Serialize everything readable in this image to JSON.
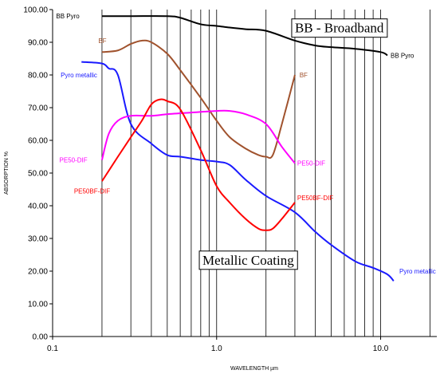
{
  "chart_data": {
    "type": "line",
    "xlabel": "WAVELENGTH µm",
    "ylabel": "ABSORPTION %",
    "x_scale": "log",
    "xlim": [
      0.1,
      22
    ],
    "ylim": [
      0,
      100
    ],
    "x_ticks": [
      {
        "value": 0.1,
        "label": "0.1"
      },
      {
        "value": 1,
        "label": "1.0"
      },
      {
        "value": 10,
        "label": "10.0"
      }
    ],
    "y_ticks": [
      {
        "value": 0,
        "label": "0.00"
      },
      {
        "value": 10,
        "label": "10.00"
      },
      {
        "value": 20,
        "label": "20.00"
      },
      {
        "value": 30,
        "label": "30.00"
      },
      {
        "value": 40,
        "label": "40.00"
      },
      {
        "value": 50,
        "label": "50.00"
      },
      {
        "value": 60,
        "label": "60.00"
      },
      {
        "value": 70,
        "label": "70.00"
      },
      {
        "value": 80,
        "label": "80.00"
      },
      {
        "value": 90,
        "label": "90.00"
      },
      {
        "value": 100,
        "label": "100.00"
      }
    ],
    "grid": {
      "vertical": true,
      "horizontal": false
    },
    "series": [
      {
        "name": "BB Pyro",
        "color": "#000000",
        "points": [
          [
            0.2,
            98
          ],
          [
            0.3,
            98
          ],
          [
            0.5,
            98
          ],
          [
            0.6,
            97.5
          ],
          [
            0.8,
            95.5
          ],
          [
            1.0,
            95
          ],
          [
            1.2,
            94.5
          ],
          [
            1.5,
            94
          ],
          [
            2.0,
            93.5
          ],
          [
            3.0,
            90.5
          ],
          [
            4.0,
            89
          ],
          [
            5.0,
            88.5
          ],
          [
            7.0,
            88
          ],
          [
            10.0,
            87
          ],
          [
            11.0,
            86
          ]
        ]
      },
      {
        "name": "BF",
        "color": "#a0522d",
        "points": [
          [
            0.2,
            87
          ],
          [
            0.25,
            87.5
          ],
          [
            0.3,
            89.5
          ],
          [
            0.35,
            90.5
          ],
          [
            0.4,
            90
          ],
          [
            0.5,
            86.5
          ],
          [
            0.6,
            81.5
          ],
          [
            0.8,
            73
          ],
          [
            1.0,
            66
          ],
          [
            1.2,
            61
          ],
          [
            1.5,
            57.5
          ],
          [
            1.8,
            55.5
          ],
          [
            2.0,
            55
          ],
          [
            2.2,
            55.5
          ],
          [
            2.5,
            65
          ],
          [
            3.0,
            80
          ]
        ]
      },
      {
        "name": "Pyro metallic",
        "color": "#1a1aff",
        "points": [
          [
            0.15,
            84
          ],
          [
            0.2,
            83.5
          ],
          [
            0.22,
            82
          ],
          [
            0.25,
            80
          ],
          [
            0.3,
            65
          ],
          [
            0.4,
            59
          ],
          [
            0.5,
            55.5
          ],
          [
            0.6,
            55
          ],
          [
            0.8,
            54
          ],
          [
            1.0,
            53.5
          ],
          [
            1.2,
            52.5
          ],
          [
            1.5,
            48
          ],
          [
            2.0,
            43
          ],
          [
            3.0,
            38
          ],
          [
            4.0,
            32
          ],
          [
            5.0,
            28
          ],
          [
            7.0,
            23
          ],
          [
            9.0,
            21
          ],
          [
            11.0,
            19
          ],
          [
            12.0,
            17
          ]
        ]
      },
      {
        "name": "PE50-DIF",
        "color": "#ff00ff",
        "points": [
          [
            0.2,
            54
          ],
          [
            0.22,
            62
          ],
          [
            0.25,
            66
          ],
          [
            0.3,
            67.5
          ],
          [
            0.4,
            67.5
          ],
          [
            0.5,
            68
          ],
          [
            0.7,
            68.5
          ],
          [
            1.0,
            69
          ],
          [
            1.2,
            69
          ],
          [
            1.5,
            68
          ],
          [
            2.0,
            65
          ],
          [
            2.5,
            58
          ],
          [
            3.0,
            53
          ]
        ]
      },
      {
        "name": "PE50BF-DIF",
        "color": "#ff0000",
        "points": [
          [
            0.2,
            47.5
          ],
          [
            0.25,
            55
          ],
          [
            0.3,
            61
          ],
          [
            0.35,
            66
          ],
          [
            0.4,
            71
          ],
          [
            0.45,
            72.5
          ],
          [
            0.5,
            72
          ],
          [
            0.6,
            69.5
          ],
          [
            0.8,
            57
          ],
          [
            1.0,
            46
          ],
          [
            1.2,
            41
          ],
          [
            1.5,
            36
          ],
          [
            1.8,
            33
          ],
          [
            2.0,
            32.5
          ],
          [
            2.2,
            33
          ],
          [
            2.5,
            36
          ],
          [
            3.0,
            41
          ]
        ]
      }
    ],
    "series_labels": [
      {
        "text": "BB Pyro",
        "color": "#000000",
        "x": 0.105,
        "y": 98.0
      },
      {
        "text": "BB Pyro",
        "color": "#000000",
        "x": 11.5,
        "y": 86.0
      },
      {
        "text": "BF",
        "color": "#a0522d",
        "x": 0.19,
        "y": 90.5
      },
      {
        "text": "BF",
        "color": "#a0522d",
        "x": 3.2,
        "y": 80.0
      },
      {
        "text": "Pyro metallic",
        "color": "#1a1aff",
        "x": 0.112,
        "y": 80.0
      },
      {
        "text": "Pyro metallic",
        "color": "#1a1aff",
        "x": 13.0,
        "y": 20.0
      },
      {
        "text": "PE50-DIF",
        "color": "#ff00ff",
        "x": 0.11,
        "y": 54.0
      },
      {
        "text": "PE50-DIF",
        "color": "#ff00ff",
        "x": 3.1,
        "y": 53.0
      },
      {
        "text": "PE50BF-DIF",
        "color": "#ff0000",
        "x": 0.135,
        "y": 44.5
      },
      {
        "text": "PE50BF-DIF",
        "color": "#ff0000",
        "x": 3.1,
        "y": 42.5
      }
    ],
    "annotations": [
      {
        "text": "BB - Broadband",
        "x": 3.0,
        "y": 93
      },
      {
        "text": "Metallic Coating",
        "x": 0.82,
        "y": 22
      }
    ]
  }
}
